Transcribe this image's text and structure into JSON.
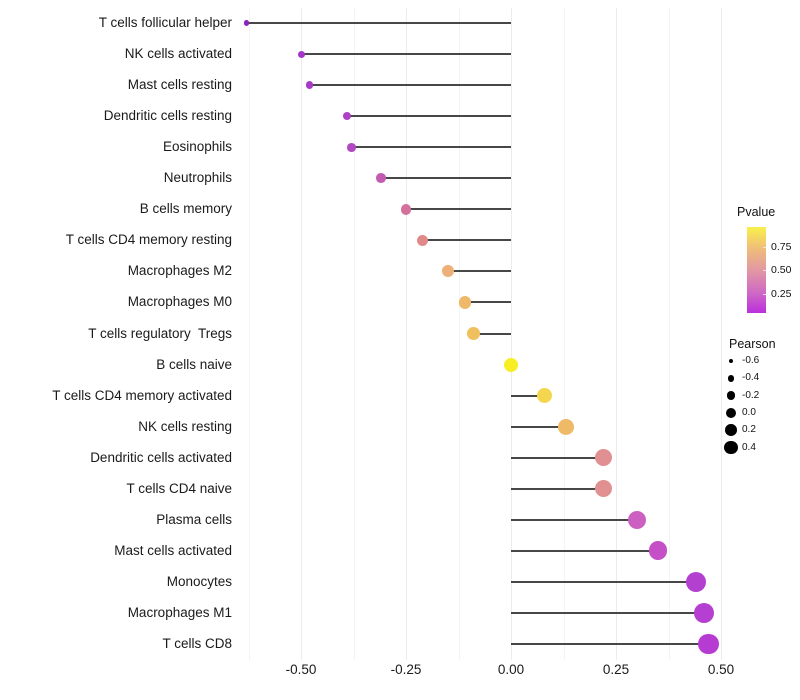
{
  "chart_data": {
    "type": "scatter",
    "subtype": "lollipop",
    "title": "",
    "xlabel": "",
    "ylabel": "",
    "xlim": [
      -0.69,
      0.53
    ],
    "grid": "vertical, minor every 0.125, major every 0.25",
    "point_color_encodes": "Pvalue",
    "point_size_encodes": "Pearson",
    "rows": [
      {
        "label": "T cells follicular helper",
        "pearson": -0.63,
        "pvalue": 0.05,
        "color": "#8b24bf"
      },
      {
        "label": "NK cells activated",
        "pearson": -0.5,
        "pvalue": 0.1,
        "color": "#a335ca"
      },
      {
        "label": "Mast cells resting",
        "pearson": -0.48,
        "pvalue": 0.11,
        "color": "#a83ac8"
      },
      {
        "label": "Dendritic cells resting",
        "pearson": -0.39,
        "pvalue": 0.13,
        "color": "#ae41c6"
      },
      {
        "label": "Eosinophils",
        "pearson": -0.38,
        "pvalue": 0.16,
        "color": "#b348c3"
      },
      {
        "label": "Neutrophils",
        "pearson": -0.31,
        "pvalue": 0.24,
        "color": "#c25cb2"
      },
      {
        "label": "B cells memory",
        "pearson": -0.25,
        "pvalue": 0.32,
        "color": "#d3709c"
      },
      {
        "label": "T cells CD4 memory resting",
        "pearson": -0.21,
        "pvalue": 0.42,
        "color": "#df8a89"
      },
      {
        "label": "Macrophages M2",
        "pearson": -0.15,
        "pvalue": 0.62,
        "color": "#ecb078"
      },
      {
        "label": "Macrophages M0",
        "pearson": -0.11,
        "pvalue": 0.66,
        "color": "#eeb968"
      },
      {
        "label": "T cells regulatory  Tregs",
        "pearson": -0.09,
        "pvalue": 0.69,
        "color": "#f0c05f"
      },
      {
        "label": "B cells naive",
        "pearson": 0.0,
        "pvalue": 0.95,
        "color": "#f8ee26"
      },
      {
        "label": "T cells CD4 memory activated",
        "pearson": 0.08,
        "pvalue": 0.83,
        "color": "#f3d64e"
      },
      {
        "label": "NK cells resting",
        "pearson": 0.13,
        "pvalue": 0.71,
        "color": "#efba68"
      },
      {
        "label": "Dendritic cells activated",
        "pearson": 0.22,
        "pvalue": 0.45,
        "color": "#e09090"
      },
      {
        "label": "T cells CD4 naive",
        "pearson": 0.22,
        "pvalue": 0.45,
        "color": "#e09090"
      },
      {
        "label": "Plasma cells",
        "pearson": 0.3,
        "pvalue": 0.26,
        "color": "#cc5fc0"
      },
      {
        "label": "Mast cells activated",
        "pearson": 0.35,
        "pvalue": 0.2,
        "color": "#c44fc6"
      },
      {
        "label": "Monocytes",
        "pearson": 0.44,
        "pvalue": 0.14,
        "color": "#b440d0"
      },
      {
        "label": "Macrophages M1",
        "pearson": 0.46,
        "pvalue": 0.13,
        "color": "#b43fd1"
      },
      {
        "label": "T cells CD8",
        "pearson": 0.47,
        "pvalue": 0.12,
        "color": "#b53bd3"
      }
    ],
    "x_axis": {
      "tick_labels": [
        "-0.50",
        "-0.25",
        "0.00",
        "0.25",
        "0.50"
      ],
      "tick_values": [
        -0.5,
        -0.25,
        0.0,
        0.25,
        0.5
      ]
    }
  },
  "legends": {
    "pvalue": {
      "title": "Pvalue",
      "tick_labels": [
        "0.75",
        "0.50",
        "0.25"
      ],
      "tick_values": [
        0.75,
        0.5,
        0.25
      ],
      "range": [
        0.04,
        0.97
      ],
      "gradient_bottom_to_top": [
        "#bb2fdc",
        "#d06cc3",
        "#e298a2",
        "#f0bd79",
        "#f9f04b"
      ]
    },
    "pearson": {
      "title": "Pearson",
      "items": [
        {
          "label": "-0.6",
          "value": -0.6
        },
        {
          "label": "-0.4",
          "value": -0.4
        },
        {
          "label": "-0.2",
          "value": -0.2
        },
        {
          "label": "0.0",
          "value": 0.0
        },
        {
          "label": "0.2",
          "value": 0.2
        },
        {
          "label": "0.4",
          "value": 0.4
        }
      ],
      "dot_color": "#000000"
    }
  }
}
